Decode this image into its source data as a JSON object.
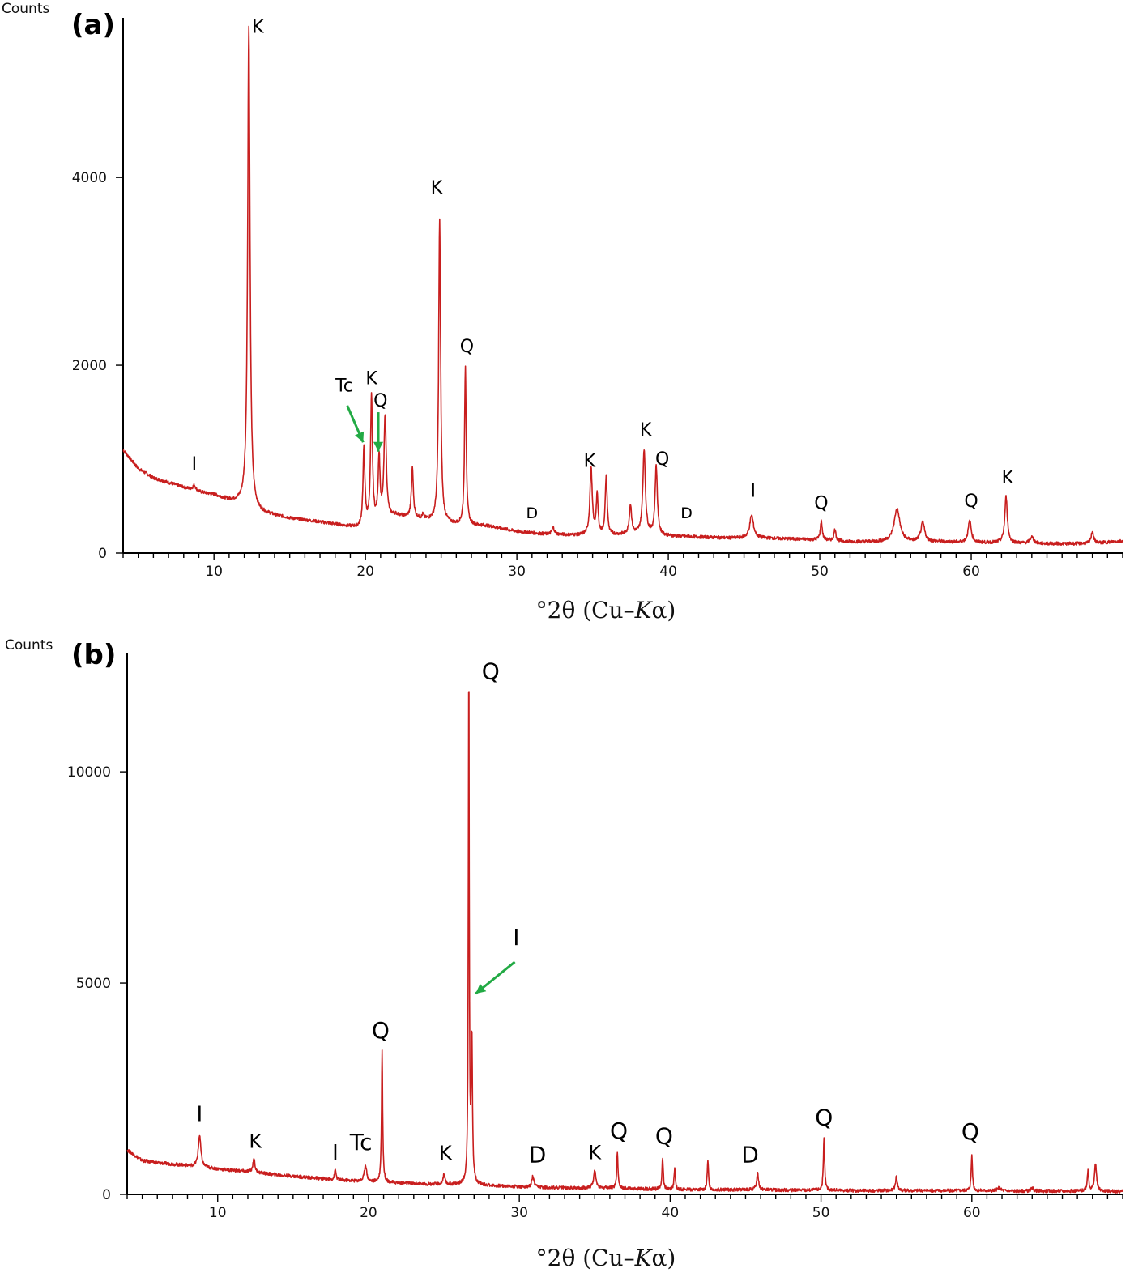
{
  "chart_data": [
    {
      "panel_label": "(a)",
      "type": "line",
      "ylabel": "Counts",
      "xlabel_main": "°2θ (Cu–",
      "xlabel_italic": "K",
      "xlabel_tail": "α)",
      "xlim": [
        4,
        70
      ],
      "ylim": [
        0,
        5700
      ],
      "x_ticks": [
        10,
        20,
        30,
        40,
        50,
        60
      ],
      "y_ticks": [
        0,
        2000,
        4000
      ],
      "line_color": "#c81e1e",
      "arrow_color": "#22aa44",
      "baseline": [
        [
          4,
          1100
        ],
        [
          5,
          900
        ],
        [
          6,
          800
        ],
        [
          7,
          750
        ],
        [
          8,
          700
        ],
        [
          9,
          650
        ],
        [
          10,
          620
        ],
        [
          11,
          560
        ],
        [
          12,
          520
        ],
        [
          13,
          430
        ],
        [
          15,
          370
        ],
        [
          17,
          330
        ],
        [
          19,
          280
        ],
        [
          19.8,
          260
        ],
        [
          22,
          400
        ],
        [
          24,
          350
        ],
        [
          26,
          300
        ],
        [
          28,
          290
        ],
        [
          30,
          230
        ],
        [
          32,
          200
        ],
        [
          34,
          190
        ],
        [
          36,
          190
        ],
        [
          38,
          200
        ],
        [
          40,
          180
        ],
        [
          42,
          170
        ],
        [
          44,
          160
        ],
        [
          46,
          160
        ],
        [
          48,
          150
        ],
        [
          50,
          140
        ],
        [
          52,
          120
        ],
        [
          54,
          120
        ],
        [
          56,
          120
        ],
        [
          58,
          120
        ],
        [
          60,
          110
        ],
        [
          62,
          110
        ],
        [
          64,
          100
        ],
        [
          66,
          100
        ],
        [
          68,
          100
        ],
        [
          70,
          130
        ]
      ],
      "peaks": [
        {
          "x": 8.7,
          "y": 720,
          "w": 0.25
        },
        {
          "x": 12.3,
          "y": 5600,
          "w": 0.18
        },
        {
          "x": 19.9,
          "y": 1100,
          "w": 0.15
        },
        {
          "x": 20.4,
          "y": 1650,
          "w": 0.15
        },
        {
          "x": 20.9,
          "y": 1000,
          "w": 0.15
        },
        {
          "x": 21.3,
          "y": 1450,
          "w": 0.18
        },
        {
          "x": 23.1,
          "y": 900,
          "w": 0.15
        },
        {
          "x": 23.8,
          "y": 400,
          "w": 0.12
        },
        {
          "x": 24.9,
          "y": 3550,
          "w": 0.15
        },
        {
          "x": 26.6,
          "y": 1980,
          "w": 0.13
        },
        {
          "x": 32.4,
          "y": 270,
          "w": 0.2
        },
        {
          "x": 34.9,
          "y": 900,
          "w": 0.18
        },
        {
          "x": 35.3,
          "y": 600,
          "w": 0.15
        },
        {
          "x": 35.9,
          "y": 820,
          "w": 0.15
        },
        {
          "x": 37.5,
          "y": 510,
          "w": 0.18
        },
        {
          "x": 38.4,
          "y": 1100,
          "w": 0.2
        },
        {
          "x": 39.2,
          "y": 920,
          "w": 0.18
        },
        {
          "x": 45.5,
          "y": 400,
          "w": 0.3
        },
        {
          "x": 50.1,
          "y": 340,
          "w": 0.15
        },
        {
          "x": 51.0,
          "y": 250,
          "w": 0.15
        },
        {
          "x": 55.1,
          "y": 470,
          "w": 0.45
        },
        {
          "x": 56.8,
          "y": 320,
          "w": 0.3
        },
        {
          "x": 59.9,
          "y": 340,
          "w": 0.25
        },
        {
          "x": 62.3,
          "y": 600,
          "w": 0.2
        },
        {
          "x": 64.0,
          "y": 170,
          "w": 0.3
        },
        {
          "x": 68.0,
          "y": 230,
          "w": 0.2
        }
      ],
      "annotations": [
        {
          "text": "K",
          "x": 12.9,
          "y": 5540,
          "size": 22
        },
        {
          "text": "K",
          "x": 24.7,
          "y": 3830,
          "size": 22
        },
        {
          "text": "Q",
          "x": 26.7,
          "y": 2140,
          "size": 22
        },
        {
          "text": "Tc",
          "x": 18.6,
          "y": 1720,
          "size": 22
        },
        {
          "text": "K",
          "x": 20.4,
          "y": 1800,
          "size": 22
        },
        {
          "text": "Q",
          "x": 21.0,
          "y": 1560,
          "size": 22
        },
        {
          "text": "I",
          "x": 8.7,
          "y": 890,
          "size": 22
        },
        {
          "text": "D",
          "x": 31.0,
          "y": 370,
          "size": 19
        },
        {
          "text": "K",
          "x": 34.8,
          "y": 920,
          "size": 22
        },
        {
          "text": "K",
          "x": 38.5,
          "y": 1250,
          "size": 22
        },
        {
          "text": "Q",
          "x": 39.6,
          "y": 940,
          "size": 22
        },
        {
          "text": "D",
          "x": 41.2,
          "y": 370,
          "size": 19
        },
        {
          "text": "I",
          "x": 45.6,
          "y": 600,
          "size": 22
        },
        {
          "text": "Q",
          "x": 50.1,
          "y": 470,
          "size": 22
        },
        {
          "text": "Q",
          "x": 60.0,
          "y": 490,
          "size": 22
        },
        {
          "text": "K",
          "x": 62.4,
          "y": 740,
          "size": 22
        }
      ],
      "arrows": [
        {
          "x1": 18.8,
          "y1": 1570,
          "x2": 19.85,
          "y2": 1180
        },
        {
          "x1": 20.85,
          "y1": 1500,
          "x2": 20.85,
          "y2": 1080
        }
      ]
    },
    {
      "panel_label": "(b)",
      "type": "line",
      "ylabel": "Counts",
      "xlabel_main": "°2θ (Cu–",
      "xlabel_italic": "K",
      "xlabel_tail": "α)",
      "xlim": [
        4,
        70
      ],
      "ylim": [
        0,
        12800
      ],
      "x_ticks": [
        10,
        20,
        30,
        40,
        50,
        60
      ],
      "y_ticks": [
        0,
        5000,
        10000
      ],
      "line_color": "#c81e1e",
      "arrow_color": "#22aa44",
      "baseline": [
        [
          4,
          1050
        ],
        [
          5,
          800
        ],
        [
          6,
          750
        ],
        [
          8,
          680
        ],
        [
          10,
          600
        ],
        [
          12,
          540
        ],
        [
          14,
          460
        ],
        [
          16,
          400
        ],
        [
          18,
          340
        ],
        [
          20,
          300
        ],
        [
          22,
          270
        ],
        [
          24,
          240
        ],
        [
          26,
          230
        ],
        [
          28,
          210
        ],
        [
          30,
          180
        ],
        [
          32,
          160
        ],
        [
          34,
          150
        ],
        [
          36,
          150
        ],
        [
          38,
          130
        ],
        [
          40,
          120
        ],
        [
          42,
          110
        ],
        [
          44,
          110
        ],
        [
          46,
          110
        ],
        [
          48,
          100
        ],
        [
          50,
          100
        ],
        [
          52,
          90
        ],
        [
          54,
          90
        ],
        [
          56,
          90
        ],
        [
          58,
          90
        ],
        [
          60,
          90
        ],
        [
          62,
          80
        ],
        [
          64,
          80
        ],
        [
          66,
          80
        ],
        [
          68,
          80
        ],
        [
          70,
          70
        ]
      ],
      "peaks": [
        {
          "x": 8.8,
          "y": 1400,
          "w": 0.2
        },
        {
          "x": 12.4,
          "y": 860,
          "w": 0.15
        },
        {
          "x": 17.8,
          "y": 580,
          "w": 0.12
        },
        {
          "x": 19.8,
          "y": 700,
          "w": 0.18
        },
        {
          "x": 20.9,
          "y": 3400,
          "w": 0.09
        },
        {
          "x": 25.0,
          "y": 460,
          "w": 0.15
        },
        {
          "x": 26.65,
          "y": 12600,
          "w": 0.07
        },
        {
          "x": 26.85,
          "y": 3600,
          "w": 0.1
        },
        {
          "x": 30.9,
          "y": 430,
          "w": 0.15
        },
        {
          "x": 35.0,
          "y": 560,
          "w": 0.18
        },
        {
          "x": 36.5,
          "y": 1000,
          "w": 0.1
        },
        {
          "x": 39.5,
          "y": 880,
          "w": 0.1
        },
        {
          "x": 40.3,
          "y": 590,
          "w": 0.1
        },
        {
          "x": 42.5,
          "y": 790,
          "w": 0.1
        },
        {
          "x": 45.8,
          "y": 490,
          "w": 0.15
        },
        {
          "x": 50.2,
          "y": 1320,
          "w": 0.1
        },
        {
          "x": 55.0,
          "y": 420,
          "w": 0.15
        },
        {
          "x": 60.0,
          "y": 930,
          "w": 0.1
        },
        {
          "x": 61.8,
          "y": 150,
          "w": 0.3
        },
        {
          "x": 64.0,
          "y": 170,
          "w": 0.15
        },
        {
          "x": 67.7,
          "y": 560,
          "w": 0.12
        },
        {
          "x": 68.2,
          "y": 740,
          "w": 0.15
        }
      ],
      "annotations": [
        {
          "text": "Q",
          "x": 28.1,
          "y": 12200,
          "size": 28
        },
        {
          "text": "I",
          "x": 29.8,
          "y": 5900,
          "size": 28
        },
        {
          "text": "Q",
          "x": 20.8,
          "y": 3700,
          "size": 28
        },
        {
          "text": "I",
          "x": 8.8,
          "y": 1730,
          "size": 26
        },
        {
          "text": "K",
          "x": 12.5,
          "y": 1100,
          "size": 24
        },
        {
          "text": "I",
          "x": 17.8,
          "y": 820,
          "size": 26
        },
        {
          "text": "Tc",
          "x": 19.5,
          "y": 1050,
          "size": 28
        },
        {
          "text": "K",
          "x": 25.1,
          "y": 820,
          "size": 24
        },
        {
          "text": "D",
          "x": 31.2,
          "y": 760,
          "size": 28
        },
        {
          "text": "K",
          "x": 35.0,
          "y": 830,
          "size": 24
        },
        {
          "text": "Q",
          "x": 36.6,
          "y": 1320,
          "size": 28
        },
        {
          "text": "Q",
          "x": 39.6,
          "y": 1200,
          "size": 28
        },
        {
          "text": "D",
          "x": 45.3,
          "y": 760,
          "size": 28
        },
        {
          "text": "Q",
          "x": 50.2,
          "y": 1640,
          "size": 28
        },
        {
          "text": "Q",
          "x": 59.9,
          "y": 1300,
          "size": 28
        }
      ],
      "arrows": [
        {
          "x1": 29.7,
          "y1": 5500,
          "x2": 27.1,
          "y2": 4750
        }
      ]
    }
  ]
}
